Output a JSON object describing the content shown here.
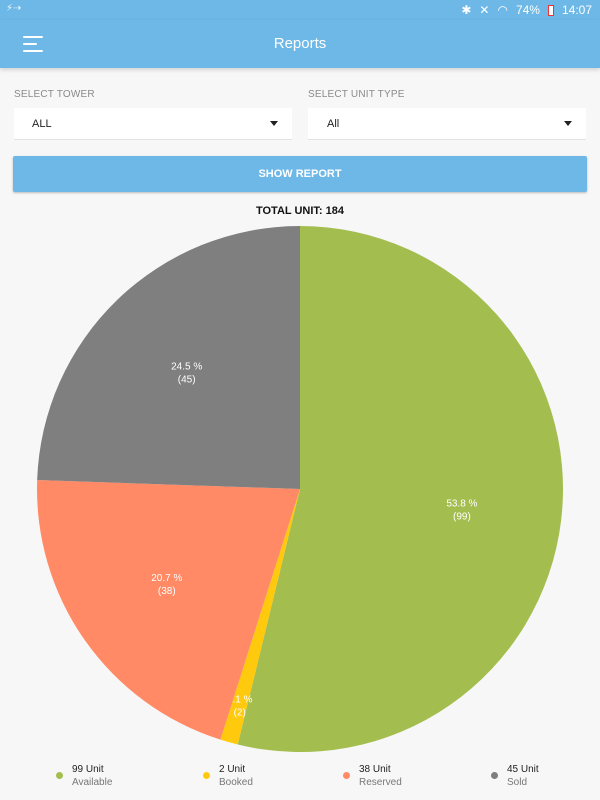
{
  "status_bar": {
    "left_text": "⚡⇢",
    "battery": "74%",
    "time": "14:07"
  },
  "app_bar": {
    "title": "Reports",
    "menu_icon": "hamburger-menu-icon"
  },
  "filters": {
    "tower": {
      "label": "SELECT TOWER",
      "value": "ALL"
    },
    "unit_type": {
      "label": "SELECT UNIT TYPE",
      "value": "All"
    }
  },
  "show_report_label": "SHOW REPORT",
  "total_label": "TOTAL UNIT: 184",
  "chart_data": {
    "type": "pie",
    "title": "TOTAL UNIT: 184",
    "total": 184,
    "slices": [
      {
        "name": "Available",
        "value": 99,
        "percent_label": "53.8 %",
        "count_label": "(99)",
        "color": "#a3bd4f"
      },
      {
        "name": "Booked",
        "value": 2,
        "percent_label": "1.1 %",
        "count_label": "(2)",
        "color": "#ffc90e"
      },
      {
        "name": "Reserved",
        "value": 38,
        "percent_label": "20.7 %",
        "count_label": "(38)",
        "color": "#ff8a65"
      },
      {
        "name": "Sold",
        "value": 45,
        "percent_label": "24.5 %",
        "count_label": "(45)",
        "color": "#7f7f7f"
      }
    ],
    "legend_placement": "bottom"
  },
  "legend": [
    {
      "value": "99 Unit",
      "name": "Available",
      "color": "#a3bd4f"
    },
    {
      "value": "2 Unit",
      "name": "Booked",
      "color": "#ffc90e"
    },
    {
      "value": "38 Unit",
      "name": "Reserved",
      "color": "#ff8a65"
    },
    {
      "value": "45 Unit",
      "name": "Sold",
      "color": "#7f7f7f"
    }
  ]
}
